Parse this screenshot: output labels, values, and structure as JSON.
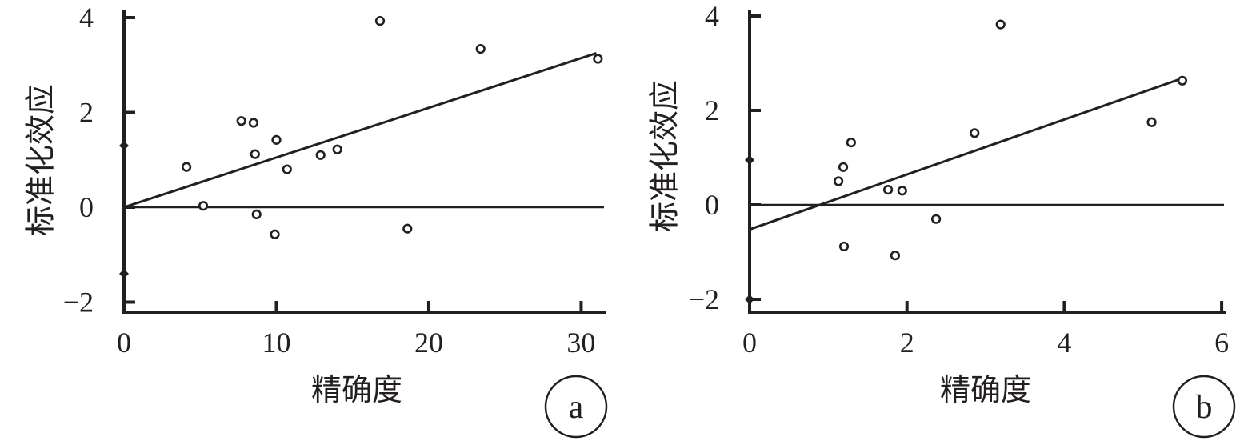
{
  "chart_data": [
    {
      "type": "scatter",
      "panel_label": "a",
      "xlabel": "精确度",
      "ylabel": "标准化效应",
      "xlim": [
        0,
        31.5
      ],
      "ylim": [
        -2.2,
        4.1
      ],
      "x_ticks": [
        0,
        10,
        20,
        30
      ],
      "x_tick_labels": [
        "0",
        "10",
        "20",
        "30"
      ],
      "y_ticks": [
        -2,
        0,
        2,
        4
      ],
      "y_tick_labels": [
        "−2",
        "0",
        "2",
        "4"
      ],
      "grid": false,
      "reference_line_y": 0,
      "y_axis_markers": [
        1.3,
        -1.4
      ],
      "regression_line": {
        "x": [
          0,
          31
        ],
        "y": [
          0,
          3.25
        ]
      },
      "points": [
        {
          "x": 4.1,
          "y": 0.85
        },
        {
          "x": 5.2,
          "y": 0.03
        },
        {
          "x": 7.7,
          "y": 1.82
        },
        {
          "x": 8.5,
          "y": 1.78
        },
        {
          "x": 8.6,
          "y": 1.12
        },
        {
          "x": 8.7,
          "y": -0.15
        },
        {
          "x": 9.9,
          "y": -0.57
        },
        {
          "x": 10.0,
          "y": 1.42
        },
        {
          "x": 10.7,
          "y": 0.8
        },
        {
          "x": 12.9,
          "y": 1.1
        },
        {
          "x": 14.0,
          "y": 1.22
        },
        {
          "x": 16.8,
          "y": 3.93
        },
        {
          "x": 18.6,
          "y": -0.45
        },
        {
          "x": 23.4,
          "y": 3.34
        },
        {
          "x": 31.1,
          "y": 3.13
        }
      ]
    },
    {
      "type": "scatter",
      "panel_label": "b",
      "xlabel": "精确度",
      "ylabel": "标准化效应",
      "xlim": [
        0,
        6.05
      ],
      "ylim": [
        -2.2,
        4.1
      ],
      "x_ticks": [
        0,
        2,
        4,
        6
      ],
      "x_tick_labels": [
        "0",
        "2",
        "4",
        "6"
      ],
      "y_ticks": [
        -2,
        0,
        2,
        4
      ],
      "y_tick_labels": [
        "−2",
        "0",
        "2",
        "4"
      ],
      "grid": false,
      "reference_line_y": 0,
      "y_axis_markers": [
        0.95,
        -2.0
      ],
      "regression_line": {
        "x": [
          0,
          5.5
        ],
        "y": [
          -0.52,
          2.68
        ]
      },
      "points": [
        {
          "x": 1.13,
          "y": 0.5
        },
        {
          "x": 1.19,
          "y": 0.8
        },
        {
          "x": 1.2,
          "y": -0.88
        },
        {
          "x": 1.29,
          "y": 1.32
        },
        {
          "x": 1.76,
          "y": 0.32
        },
        {
          "x": 1.85,
          "y": -1.07
        },
        {
          "x": 1.94,
          "y": 0.3
        },
        {
          "x": 2.37,
          "y": -0.3
        },
        {
          "x": 2.86,
          "y": 1.52
        },
        {
          "x": 3.19,
          "y": 3.82
        },
        {
          "x": 5.11,
          "y": 1.75
        },
        {
          "x": 5.5,
          "y": 2.63
        }
      ]
    }
  ]
}
